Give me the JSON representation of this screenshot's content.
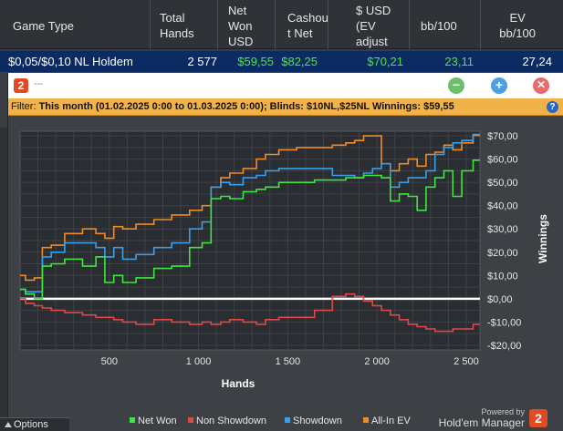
{
  "table": {
    "headers": {
      "game_type": "Game Type",
      "total_hands": [
        "Total",
        "Hands"
      ],
      "net_won": [
        "Net",
        "Won",
        "USD"
      ],
      "cashout_net": [
        "Cashou",
        "t Net"
      ],
      "usd_ev": [
        "$ USD",
        "(EV",
        "adjust"
      ],
      "bb100": "bb/100",
      "ev_bb100": [
        "EV",
        "bb/100"
      ]
    },
    "row": {
      "game_type": "$0,05/$0,10 NL Holdem",
      "total_hands": "2 577",
      "net_won": "$59,55",
      "cashout_net": "$82,25",
      "usd_ev": "$70,21",
      "bb100": "23,11",
      "ev_bb100": "27,24"
    }
  },
  "window": {
    "logo": "2",
    "title": "---",
    "min_icon": "minus-icon",
    "max_icon": "plus-icon",
    "close_icon": "close-icon"
  },
  "filter": {
    "label": "Filter:",
    "text": "This month (01.02.2025 0:00 to 01.03.2025 0:00); Blinds: $10NL,$25NL Winnings: $59,55",
    "help": "?"
  },
  "options": {
    "label": "Options"
  },
  "brand": {
    "powered": "Powered by",
    "name": "Hold'em Manager",
    "badge": "2"
  },
  "colors": {
    "net_won": "#3ee63e",
    "non_showdown": "#e04848",
    "showdown": "#3a9fe8",
    "allin_ev": "#f08a2a",
    "zero_line": "#ffffff",
    "filter_bg": "#f2b24a"
  },
  "chart_data": {
    "type": "line",
    "xlabel": "Hands",
    "ylabel": "Winnings",
    "xlim": [
      0,
      2577
    ],
    "ylim": [
      -22,
      72
    ],
    "x_ticks": [
      500,
      1000,
      1500,
      2000,
      2500
    ],
    "x_tick_labels": [
      "500",
      "1 000",
      "1 500",
      "2 000",
      "2 500"
    ],
    "y_ticks": [
      70,
      60,
      50,
      40,
      30,
      20,
      10,
      0,
      -10,
      -20
    ],
    "y_tick_labels": [
      "$70,00",
      "$60,00",
      "$50,00",
      "$40,00",
      "$30,00",
      "$20,00",
      "$10,00",
      "$0,00",
      "-$10,00",
      "-$20,00"
    ],
    "grid": true,
    "legend_position": "bottom",
    "x": [
      0,
      60,
      100,
      150,
      200,
      300,
      400,
      450,
      500,
      550,
      600,
      700,
      800,
      900,
      1000,
      1040,
      1100,
      1150,
      1200,
      1300,
      1350,
      1400,
      1500,
      1600,
      1700,
      1800,
      1850,
      1900,
      1950,
      2000,
      2050,
      2100,
      2150,
      2200,
      2250,
      2300,
      2350,
      2400,
      2450,
      2500,
      2577
    ],
    "series": [
      {
        "name": "Net Won",
        "values": [
          4,
          2,
          0,
          14,
          15,
          17,
          14,
          18,
          7,
          10,
          7,
          9,
          13,
          14,
          22,
          24,
          43,
          44,
          43,
          46,
          47,
          48,
          50,
          50,
          51,
          51,
          52,
          52,
          53,
          53,
          52,
          42,
          45,
          44,
          38,
          48,
          52,
          55,
          44,
          55,
          59.55
        ]
      },
      {
        "name": "Non Showdown",
        "values": [
          0,
          -2,
          -3,
          -4,
          -5,
          -6,
          -7,
          -8,
          -8,
          -9,
          -10,
          -11,
          -9,
          -10,
          -11,
          -10,
          -11,
          -10,
          -9,
          -10,
          -11,
          -9,
          -8,
          -8,
          -5,
          1,
          2,
          1,
          -1,
          -3,
          -5,
          -7,
          -9,
          -11,
          -12,
          -13,
          -14,
          -14,
          -13,
          -13,
          -11
        ]
      },
      {
        "name": "Showdown",
        "values": [
          4,
          3,
          3,
          18,
          20,
          24,
          24,
          22,
          18,
          22,
          17,
          19,
          22,
          24,
          30,
          33,
          48,
          50,
          49,
          52,
          53,
          55,
          56,
          56,
          56,
          53,
          53,
          52,
          54,
          56,
          58,
          48,
          50,
          52,
          52,
          55,
          62,
          65,
          67,
          68,
          70.6
        ]
      },
      {
        "name": "All-In EV",
        "values": [
          10,
          8,
          9,
          22,
          23,
          28,
          30,
          28,
          26,
          31,
          30,
          32,
          34,
          36,
          38,
          40,
          48,
          52,
          54,
          56,
          60,
          62,
          64,
          65,
          65,
          66,
          67,
          68,
          70,
          70,
          58,
          55,
          58,
          60,
          57,
          62,
          63,
          66,
          64,
          67,
          70.21
        ]
      }
    ]
  }
}
